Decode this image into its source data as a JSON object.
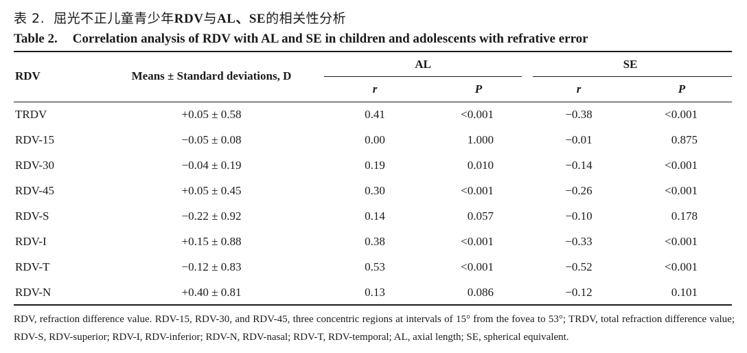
{
  "caption": {
    "cn_prefix": "表 2.",
    "cn_text_1": "屈光不正儿童青少年",
    "cn_bold": "RDV",
    "cn_text_2": "与",
    "cn_bold_2": "AL、SE",
    "cn_text_3": "的相关性分析",
    "en_label": "Table 2.",
    "en_title": "Correlation analysis of RDV with AL and SE in children and adolescents with refrative error"
  },
  "header": {
    "rdv": "RDV",
    "means": "Means ± Standard deviations, D",
    "al": "AL",
    "se": "SE",
    "r": "r",
    "p": "P"
  },
  "rows": [
    {
      "rdv": "TRDV",
      "mean": "+0.05 ± 0.58",
      "al_r": "0.41",
      "al_p": "<0.001",
      "se_r": "−0.38",
      "se_p": "<0.001"
    },
    {
      "rdv": "RDV-15",
      "mean": "−0.05 ± 0.08",
      "al_r": "0.00",
      "al_p": "1.000",
      "se_r": "−0.01",
      "se_p": "0.875"
    },
    {
      "rdv": "RDV-30",
      "mean": "−0.04 ± 0.19",
      "al_r": "0.19",
      "al_p": "0.010",
      "se_r": "−0.14",
      "se_p": "<0.001"
    },
    {
      "rdv": "RDV-45",
      "mean": "+0.05 ± 0.45",
      "al_r": "0.30",
      "al_p": "<0.001",
      "se_r": "−0.26",
      "se_p": "<0.001"
    },
    {
      "rdv": "RDV-S",
      "mean": "−0.22 ± 0.92",
      "al_r": "0.14",
      "al_p": "0.057",
      "se_r": "−0.10",
      "se_p": "0.178"
    },
    {
      "rdv": "RDV-I",
      "mean": "+0.15 ± 0.88",
      "al_r": "0.38",
      "al_p": "<0.001",
      "se_r": "−0.33",
      "se_p": "<0.001"
    },
    {
      "rdv": "RDV-T",
      "mean": "−0.12 ± 0.83",
      "al_r": "0.53",
      "al_p": "<0.001",
      "se_r": "−0.52",
      "se_p": "<0.001"
    },
    {
      "rdv": "RDV-N",
      "mean": "+0.40 ± 0.81",
      "al_r": "0.13",
      "al_p": "0.086",
      "se_r": "−0.12",
      "se_p": "0.101"
    }
  ],
  "footnote": "RDV, refraction difference value. RDV-15, RDV-30, and RDV-45, three concentric regions at intervals of 15° from the fovea to 53°; TRDV, total refraction difference value; RDV-S, RDV-superior; RDV-I, RDV-inferior; RDV-N, RDV-nasal; RDV-T, RDV-temporal; AL, axial length; SE, spherical equivalent."
}
